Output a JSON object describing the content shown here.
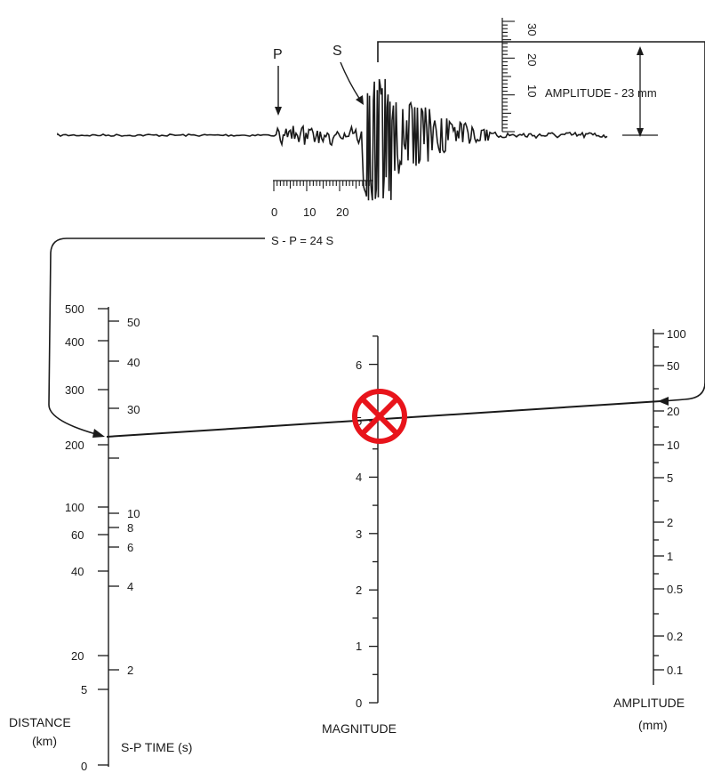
{
  "seismogram": {
    "p_label": "P",
    "s_label": "S",
    "amplitude_label": "AMPLITUDE - 23 mm",
    "sp_label": "S - P = 24 S",
    "time_scale_labels": [
      "0",
      "10",
      "20"
    ],
    "amplitude_scale_labels": [
      "10",
      "20",
      "30"
    ]
  },
  "scales": {
    "distance": {
      "title_line1": "DISTANCE",
      "title_line2": "(km)",
      "tick_labels": [
        "500",
        "400",
        "300",
        "200",
        "100",
        "60",
        "40",
        "20",
        "5",
        "0"
      ]
    },
    "sp_time": {
      "title": "S-P TIME (s)",
      "tick_labels": [
        "50",
        "40",
        "30",
        "10",
        "8",
        "6",
        "4",
        "2"
      ]
    },
    "magnitude": {
      "title": "MAGNITUDE",
      "tick_labels": [
        "6",
        "5",
        "4",
        "3",
        "2",
        "1",
        "0"
      ]
    },
    "amplitude": {
      "title_line1": "AMPLITUDE",
      "title_line2": "(mm)",
      "tick_labels": [
        "100",
        "50",
        "20",
        "10",
        "5",
        "2",
        "1",
        "0.5",
        "0.2",
        "0.1"
      ]
    }
  },
  "marker": {
    "color": "#e8141b",
    "icon": "x-circle-icon"
  },
  "colors": {
    "ink": "#1a1a1a"
  }
}
